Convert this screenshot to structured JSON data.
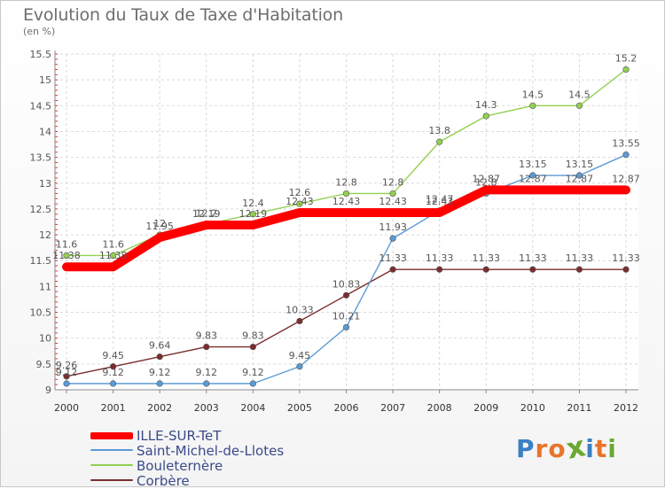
{
  "chart_data": {
    "type": "line",
    "title": "Evolution du Taux de Taxe d'Habitation",
    "subtitle": "(en %)",
    "x": [
      "2000",
      "2001",
      "2002",
      "2003",
      "2004",
      "2005",
      "2006",
      "2007",
      "2008",
      "2009",
      "2010",
      "2011",
      "2012"
    ],
    "y_ticks": [
      "9",
      "9.5",
      "10",
      "10.5",
      "11",
      "11.5",
      "12",
      "12.5",
      "13",
      "13.5",
      "14",
      "14.5",
      "15",
      "15.5"
    ],
    "ylim": [
      9,
      15.5
    ],
    "grid": true,
    "legend_position": "bottom-left",
    "series": [
      {
        "name": "ILLE-SUR-TeT",
        "color": "#ff0000",
        "values": [
          11.38,
          11.38,
          11.95,
          12.19,
          12.19,
          12.43,
          12.43,
          12.43,
          12.43,
          12.87,
          12.87,
          12.87,
          12.87
        ],
        "labels": [
          "11.38",
          "11.38",
          "11.95",
          "12.19",
          "12.19",
          "12.43",
          "12.43",
          "12.43",
          "12.43",
          "12.87",
          "12.87",
          "12.87",
          "12.87"
        ]
      },
      {
        "name": "Saint-Michel-de-Llotes",
        "color": "#5b9bd5",
        "values": [
          9.12,
          9.12,
          9.12,
          9.12,
          9.12,
          9.45,
          10.21,
          11.93,
          12.47,
          12.8,
          13.15,
          13.15,
          13.55
        ],
        "labels": [
          "9.12",
          "9.12",
          "9.12",
          "9.12",
          "9.12",
          "9.45",
          "10.21",
          "11.93",
          "12.47",
          "12.8",
          "13.15",
          "13.15",
          "13.55"
        ]
      },
      {
        "name": "Bouleternère",
        "color": "#92d050",
        "values": [
          11.6,
          11.6,
          12.0,
          12.2,
          12.4,
          12.6,
          12.8,
          12.8,
          13.8,
          14.3,
          14.5,
          14.5,
          15.2
        ],
        "labels": [
          "11.6",
          "11.6",
          "12",
          "12.2",
          "12.4",
          "12.6",
          "12.8",
          "12.8",
          "13.8",
          "14.3",
          "14.5",
          "14.5",
          "15.2"
        ]
      },
      {
        "name": "Corbère",
        "color": "#7b2d2d",
        "values": [
          9.26,
          9.45,
          9.64,
          9.83,
          9.83,
          10.33,
          10.83,
          11.33,
          11.33,
          11.33,
          11.33,
          11.33,
          11.33
        ],
        "labels": [
          "9.26",
          "9.45",
          "9.64",
          "9.83",
          "9.83",
          "10.33",
          "10.83",
          "11.33",
          "11.33",
          "11.33",
          "11.33",
          "11.33",
          "11.33"
        ]
      }
    ]
  },
  "legend": {
    "items": [
      "ILLE-SUR-TeT",
      "Saint-Michel-de-Llotes",
      "Bouleternère",
      "Corbère"
    ]
  },
  "logo": {
    "text": "Proxiti",
    "letters": [
      "P",
      "r",
      "o",
      "x",
      "i",
      "t",
      "i"
    ],
    "colors": [
      "#3b7fc4",
      "#e8742a",
      "#e8742a",
      "#6aa832",
      "#3b7fc4",
      "#e8742a",
      "#6aa832"
    ]
  }
}
